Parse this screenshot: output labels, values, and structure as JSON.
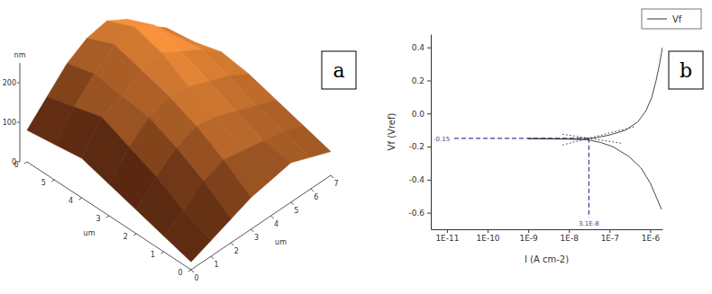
{
  "chart_data": [
    {
      "type": "surface",
      "panel_label": "a",
      "color": "#a0401a",
      "x_label": "um",
      "y_label": "um",
      "z_label": "nm",
      "xlim": [
        0,
        7
      ],
      "xticks": [
        0,
        1,
        2,
        3,
        4,
        5,
        6,
        7
      ],
      "ylim": [
        0,
        6
      ],
      "yticks": [
        0,
        1,
        2,
        3,
        4,
        5,
        6
      ],
      "zlim": [
        0,
        250
      ],
      "zticks": [
        0,
        100,
        200
      ],
      "x": [
        0,
        1,
        2,
        3,
        4,
        5,
        6,
        7
      ],
      "y": [
        0,
        1,
        2,
        3,
        4,
        5,
        6
      ],
      "z": [
        [
          20,
          40,
          60,
          80,
          90,
          100,
          80,
          60
        ],
        [
          40,
          70,
          110,
          130,
          120,
          110,
          100,
          80
        ],
        [
          60,
          110,
          150,
          170,
          160,
          140,
          120,
          100
        ],
        [
          80,
          140,
          180,
          200,
          190,
          170,
          150,
          120
        ],
        [
          100,
          170,
          190,
          220,
          230,
          200,
          170,
          130
        ],
        [
          90,
          150,
          200,
          240,
          250,
          220,
          160,
          110
        ],
        [
          80,
          130,
          180,
          210,
          220,
          190,
          140,
          100
        ]
      ]
    },
    {
      "type": "line",
      "panel_label": "b",
      "log": "x",
      "legend": "top-right",
      "x_label": "I (A cm-2)",
      "y_label": "Vf (Vref)",
      "xlim": [
        4e-12,
        2e-06
      ],
      "xticks": [
        {
          "value": 1e-11,
          "label": "1E-11"
        },
        {
          "value": 1e-10,
          "label": "1E-10"
        },
        {
          "value": 1e-09,
          "label": "1E-9"
        },
        {
          "value": 1e-08,
          "label": "1E-8"
        },
        {
          "value": 1e-07,
          "label": "1E-7"
        },
        {
          "value": 1e-06,
          "label": "1E-6"
        }
      ],
      "ylim": [
        -0.7,
        0.48
      ],
      "yticks": [
        -0.6,
        -0.4,
        -0.2,
        {
          "value": 0,
          "label": "0.0"
        },
        0.2,
        0.4
      ],
      "series": [
        {
          "name": "Vf",
          "color": "#333333",
          "line_style": "solid",
          "x": [
            2e-06,
            1.7e-06,
            1.4e-06,
            1.1e-06,
            8e-07,
            5e-07,
            2.5e-07,
            1e-07,
            5e-08,
            3.1e-08,
            1e-08,
            1e-09,
            1e-08,
            3.1e-08,
            6e-08,
            1.2e-07,
            3e-07,
            6e-07,
            1e-06,
            1.5e-06,
            1.9e-06
          ],
          "values": [
            0.4,
            0.3,
            0.2,
            0.1,
            0.02,
            -0.05,
            -0.1,
            -0.13,
            -0.145,
            -0.15,
            -0.152,
            -0.152,
            -0.155,
            -0.16,
            -0.175,
            -0.2,
            -0.26,
            -0.33,
            -0.42,
            -0.52,
            -0.58
          ]
        },
        {
          "color": "#333333",
          "line_style": "dotted",
          "x": [
            7e-09,
            4e-07
          ],
          "values": [
            -0.19,
            -0.08
          ]
        },
        {
          "color": "#333333",
          "line_style": "dotted",
          "x": [
            7e-09,
            2e-07
          ],
          "values": [
            -0.125,
            -0.18
          ]
        }
      ],
      "annotations": [
        {
          "x": {
            "value": 3.1e-08,
            "label": "3.1E-8"
          },
          "y": -0.15,
          "color": "#3c3ca0",
          "line_style": "dashed"
        }
      ]
    }
  ]
}
